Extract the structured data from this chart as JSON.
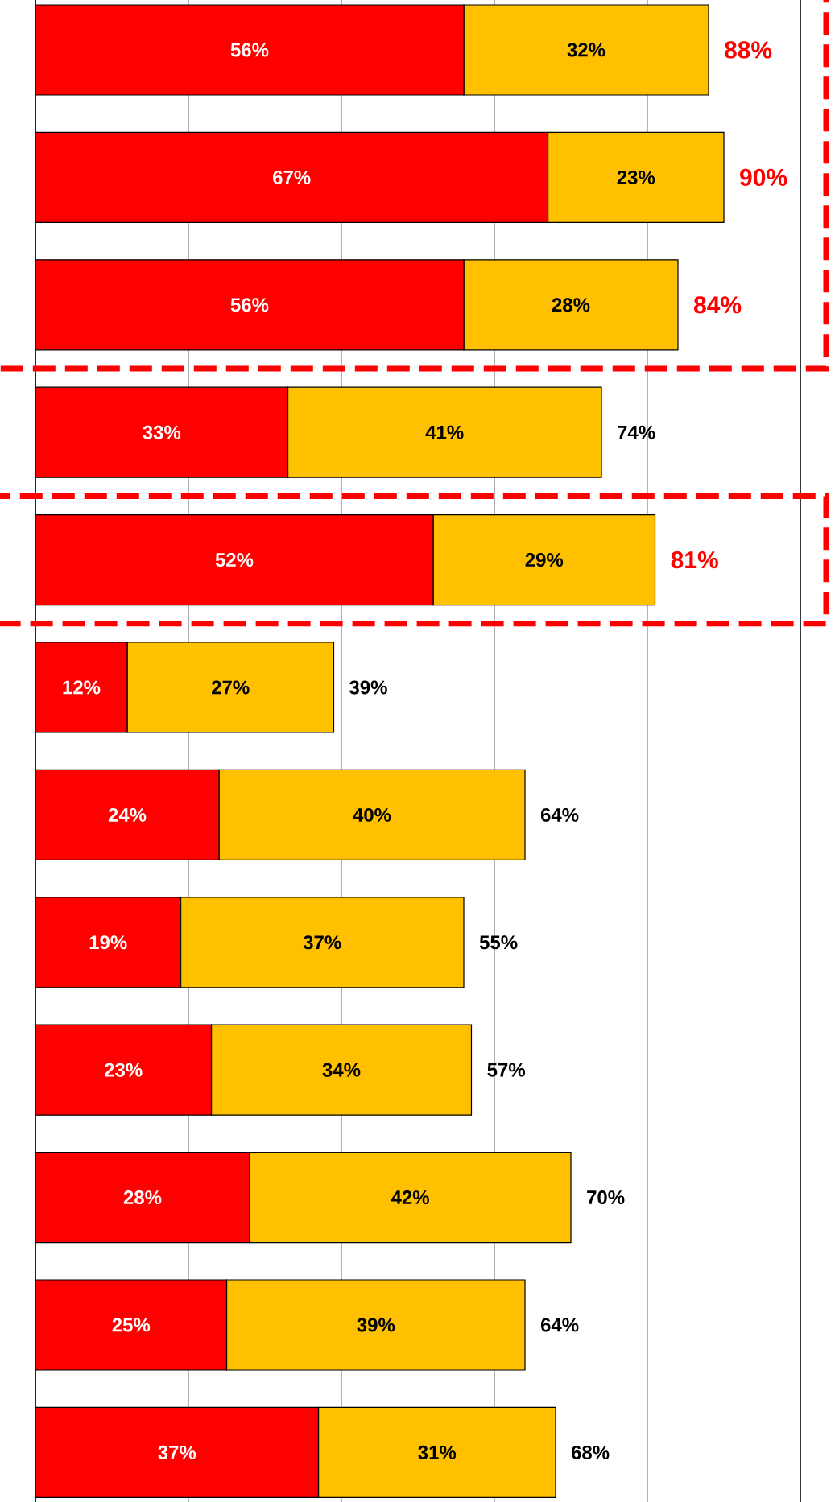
{
  "chart_data": {
    "type": "bar",
    "orientation": "horizontal",
    "stacked": true,
    "categories": [
      null,
      null,
      null,
      null,
      null,
      null,
      null,
      null,
      null,
      null,
      null,
      null
    ],
    "series": [
      {
        "color": "#ff0000",
        "values": [
          56,
          67,
          56,
          33,
          52,
          12,
          24,
          19,
          23,
          28,
          25,
          37
        ],
        "value_labels": [
          "56%",
          "67%",
          "56%",
          "33%",
          "52%",
          "12%",
          "24%",
          "19%",
          "23%",
          "28%",
          "25%",
          "37%"
        ]
      },
      {
        "color": "#ffc000",
        "values": [
          32,
          23,
          28,
          41,
          29,
          27,
          40,
          37,
          34,
          42,
          39,
          31
        ],
        "value_labels": [
          "32%",
          "23%",
          "28%",
          "41%",
          "29%",
          "27%",
          "40%",
          "37%",
          "34%",
          "42%",
          "39%",
          "31%"
        ]
      }
    ],
    "totals": [
      "88%",
      "90%",
      "84%",
      "74%",
      "81%",
      "39%",
      "64%",
      "55%",
      "57%",
      "70%",
      "64%",
      "68%"
    ],
    "grid": "x"
  }
}
